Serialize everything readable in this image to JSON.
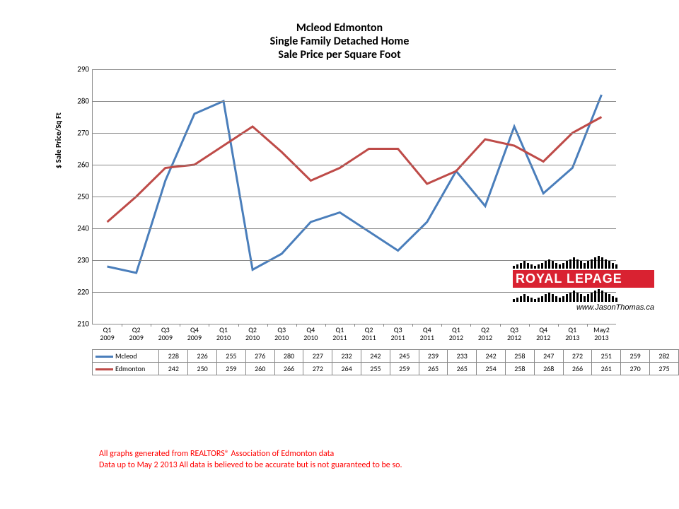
{
  "title_line1": "Mcleod Edmonton",
  "title_line2": "Single Family Detached Home",
  "title_line3": "Sale Price per Square Foot",
  "yaxis_label": "$ Sale Price/Sq Ft",
  "ylim": [
    210,
    290
  ],
  "ytick_step": 10,
  "yticks": [
    210,
    220,
    230,
    240,
    250,
    260,
    270,
    280,
    290
  ],
  "grid_color": "#888888",
  "background_color": "#ffffff",
  "line_width": 3,
  "categories": [
    "Q1 2009",
    "Q2 2009",
    "Q3 2009",
    "Q4 2009",
    "Q1 2010",
    "Q2 2010",
    "Q3 2010",
    "Q4 2010",
    "Q1 2011",
    "Q2 2011",
    "Q3 2011",
    "Q4 2011",
    "Q1 2012",
    "Q2 2012",
    "Q3 2012",
    "Q4 2012",
    "Q1 2013",
    "May2 2013"
  ],
  "series": [
    {
      "name": "Mcleod",
      "color": "#4a7ebb",
      "values": [
        228,
        226,
        255,
        276,
        280,
        227,
        232,
        242,
        245,
        239,
        233,
        242,
        258,
        247,
        272,
        251,
        259,
        282
      ]
    },
    {
      "name": "Edmonton",
      "color": "#be4b48",
      "values": [
        242,
        250,
        259,
        260,
        266,
        272,
        264,
        255,
        259,
        265,
        265,
        254,
        258,
        268,
        266,
        261,
        270,
        275
      ]
    }
  ],
  "logo": {
    "brand": "ROYAL LEPAGE",
    "url": "www.JasonThomas.ca",
    "red": "#d92231"
  },
  "footer_line1": "All graphs generated from REALTORS® Association of Edmonton data",
  "footer_line2": "Data up to  May 2 2013  All data is believed to be accurate but is not guaranteed to be so.",
  "title_fontsize": 16,
  "tick_fontsize": 11,
  "table_fontsize": 10
}
